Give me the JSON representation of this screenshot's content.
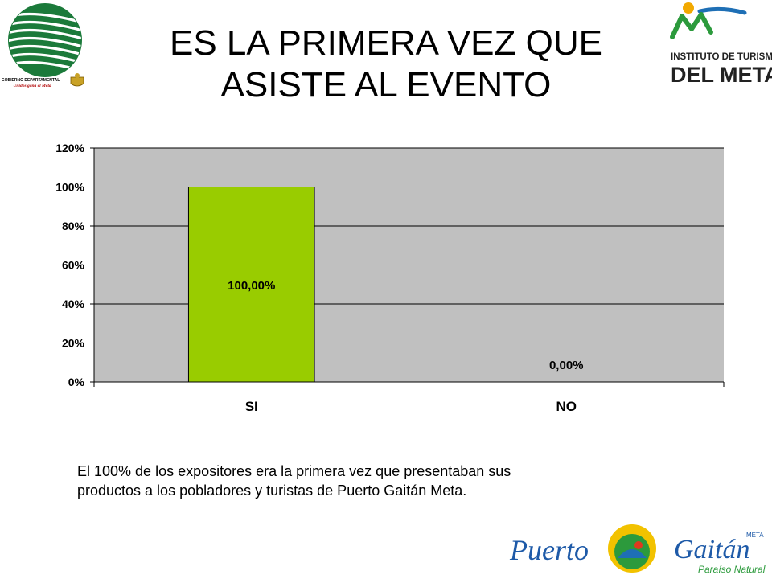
{
  "title": {
    "line1": "ES LA PRIMERA VEZ QUE",
    "line2": "ASISTE AL EVENTO"
  },
  "logos": {
    "gobierno": {
      "text_top": "GOBIERNO DEPARTAMENTAL",
      "text_bottom": "Unidos gana el Meta"
    },
    "instituto": {
      "line1": "INSTITUTO DE TURISMO",
      "line2": "DEL META"
    },
    "puerto_gaitan": {
      "left": "Puerto",
      "right": "Gaitán",
      "tag": "META",
      "sub": "Paraíso Natural"
    }
  },
  "chart_data": {
    "type": "bar",
    "categories": [
      "SI",
      "NO"
    ],
    "values": [
      100,
      0
    ],
    "data_labels": [
      "100,00%",
      "0,00%"
    ],
    "y_ticks": [
      "0%",
      "20%",
      "40%",
      "60%",
      "80%",
      "100%",
      "120%"
    ],
    "ylim": [
      0,
      120
    ],
    "grid": true,
    "legend": "none",
    "colors": {
      "bar": "#99cc00",
      "plot_bg": "#c0c0c0",
      "grid": "#000000"
    }
  },
  "caption": {
    "line1": "El 100% de los expositores era la primera vez que presentaban sus",
    "line2": "productos a los pobladores  y turistas de Puerto Gaitán Meta."
  }
}
